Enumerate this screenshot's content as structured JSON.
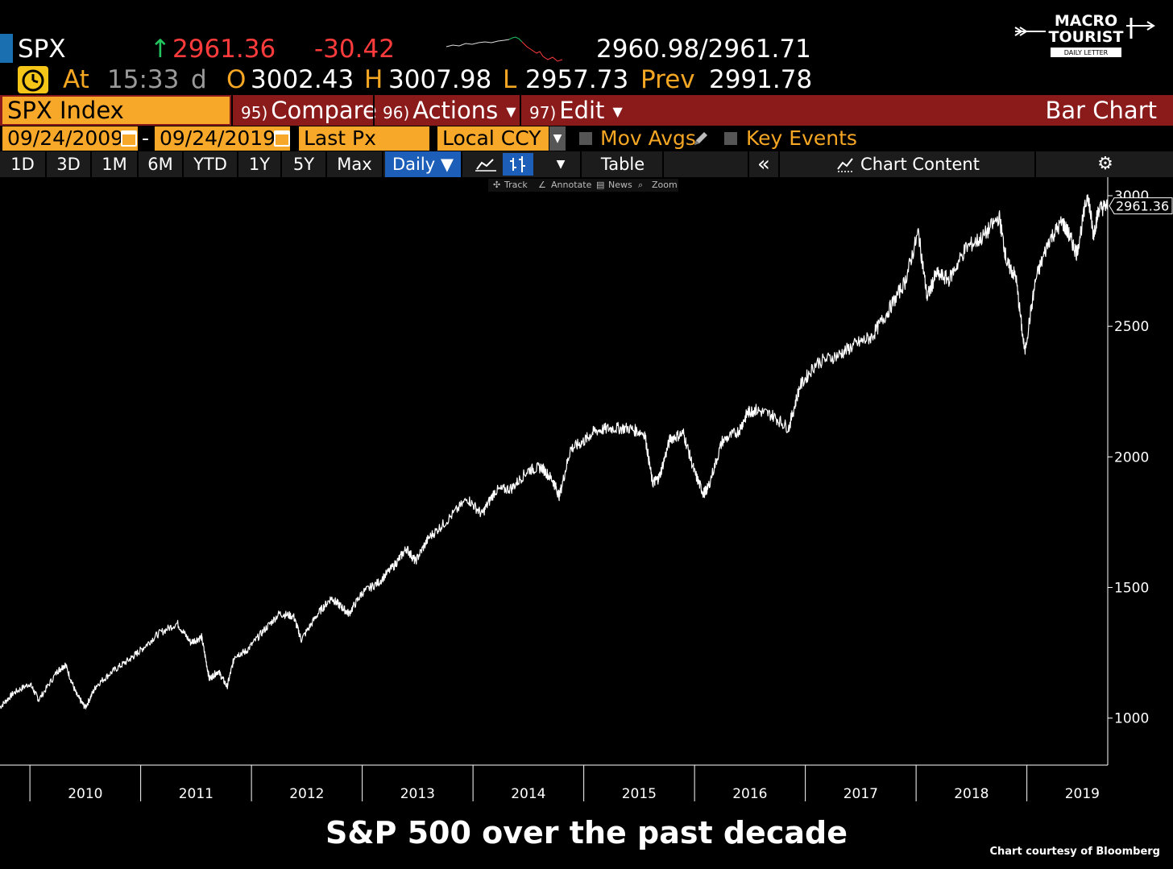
{
  "quote": {
    "ticker": "SPX",
    "arrow": "↑",
    "last": "2961.36",
    "change": "-30.42",
    "bid_ask": "2960.98/2961.71",
    "at_label": "At",
    "time": "15:33",
    "time_suffix": "d",
    "open_label": "O",
    "open": "3002.43",
    "high_label": "H",
    "high": "3007.98",
    "low_label": "L",
    "low": "2957.73",
    "prev_label": "Prev",
    "prev": "2991.78"
  },
  "command_bar": {
    "security": "SPX Index",
    "compare_num": "95)",
    "compare": "Compare",
    "actions_num": "96)",
    "actions": "Actions",
    "edit_num": "97)",
    "edit": "Edit",
    "chart_type": "Bar Chart"
  },
  "date_row": {
    "start_date": "09/24/2009",
    "separator": "-",
    "end_date": "09/24/2019",
    "field": "Last Px",
    "currency": "Local CCY",
    "mov_avgs": "Mov Avgs",
    "key_events": "Key Events"
  },
  "range_bar": {
    "ranges": [
      "1D",
      "3D",
      "1M",
      "6M",
      "YTD",
      "1Y",
      "5Y",
      "Max"
    ],
    "frequency": "Daily ▼",
    "table": "Table",
    "collapse": "«",
    "chart_content": "Chart Content"
  },
  "sub_tools": {
    "track": "Track",
    "annotate": "Annotate",
    "news": "News",
    "zoom": "Zoom"
  },
  "logo": {
    "line1": "MACRO",
    "line2": "TOURIST",
    "line3": "DAILY LETTER"
  },
  "colors": {
    "orange": "#f7a829",
    "red_bar": "#8b1a1a",
    "up_green": "#22c55e",
    "down_red": "#ff3b3b",
    "blue_active": "#1d5fb8"
  },
  "chart_data": {
    "type": "line",
    "title": "S&P 500 over the past decade",
    "credit": "Chart courtesy of Bloomberg",
    "x_tick_labels": [
      "2010",
      "2011",
      "2012",
      "2013",
      "2014",
      "2015",
      "2016",
      "2017",
      "2018",
      "2019"
    ],
    "x_range": [
      2009.73,
      2019.73
    ],
    "y_tick_labels": [
      "1000",
      "1500",
      "2000",
      "2500",
      "3000"
    ],
    "ylim": [
      820,
      3040
    ],
    "last_value_label": "2961.36",
    "series": [
      {
        "name": "SPX Index",
        "x": [
          2009.73,
          2009.85,
          2010.0,
          2010.08,
          2010.25,
          2010.32,
          2010.42,
          2010.5,
          2010.6,
          2010.75,
          2010.9,
          2011.0,
          2011.15,
          2011.33,
          2011.45,
          2011.55,
          2011.62,
          2011.7,
          2011.78,
          2011.85,
          2011.95,
          2012.1,
          2012.25,
          2012.38,
          2012.45,
          2012.6,
          2012.72,
          2012.8,
          2012.88,
          2013.0,
          2013.15,
          2013.3,
          2013.4,
          2013.48,
          2013.6,
          2013.75,
          2013.95,
          2014.08,
          2014.2,
          2014.35,
          2014.5,
          2014.62,
          2014.72,
          2014.78,
          2014.88,
          2015.0,
          2015.1,
          2015.25,
          2015.4,
          2015.55,
          2015.62,
          2015.68,
          2015.78,
          2015.9,
          2016.0,
          2016.08,
          2016.12,
          2016.25,
          2016.4,
          2016.48,
          2016.55,
          2016.7,
          2016.85,
          2016.95,
          2017.1,
          2017.3,
          2017.45,
          2017.6,
          2017.75,
          2017.9,
          2018.02,
          2018.1,
          2018.18,
          2018.3,
          2018.45,
          2018.6,
          2018.75,
          2018.82,
          2018.9,
          2018.98,
          2019.08,
          2019.2,
          2019.32,
          2019.38,
          2019.45,
          2019.55,
          2019.6,
          2019.65,
          2019.73
        ],
        "y": [
          1042,
          1095,
          1132,
          1070,
          1180,
          1205,
          1090,
          1040,
          1125,
          1180,
          1225,
          1260,
          1320,
          1363,
          1290,
          1310,
          1150,
          1180,
          1120,
          1240,
          1255,
          1330,
          1400,
          1390,
          1300,
          1400,
          1460,
          1430,
          1400,
          1480,
          1520,
          1590,
          1650,
          1600,
          1690,
          1750,
          1840,
          1780,
          1870,
          1880,
          1950,
          1960,
          1910,
          1850,
          2030,
          2060,
          2100,
          2110,
          2110,
          2090,
          1900,
          1920,
          2070,
          2090,
          1940,
          1860,
          1880,
          2060,
          2100,
          2170,
          2180,
          2160,
          2110,
          2270,
          2360,
          2390,
          2430,
          2460,
          2560,
          2670,
          2860,
          2610,
          2700,
          2680,
          2800,
          2840,
          2920,
          2740,
          2690,
          2400,
          2680,
          2830,
          2900,
          2850,
          2780,
          3010,
          2850,
          2950,
          2961
        ]
      }
    ]
  }
}
